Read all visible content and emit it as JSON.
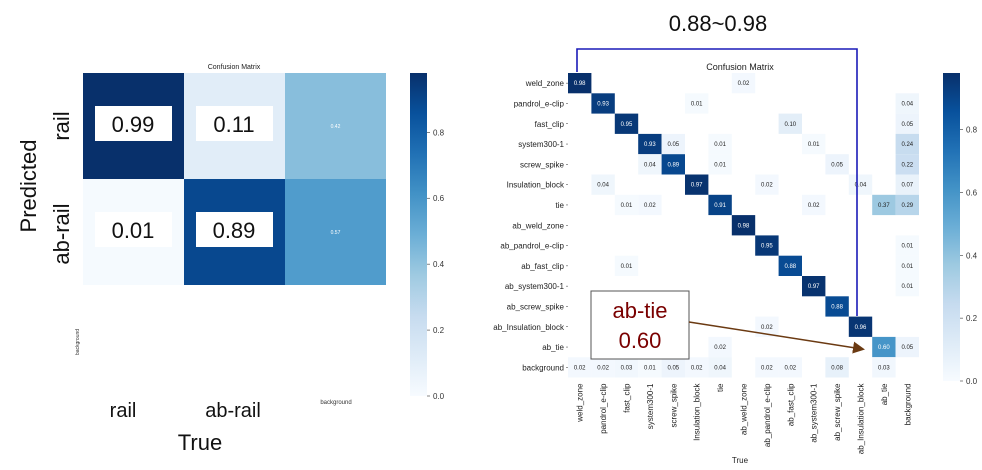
{
  "chart_data": [
    {
      "type": "heatmap",
      "title": "Confusion Matrix",
      "xlabel": "True",
      "ylabel": "Predicted",
      "x_tick_labels": [
        "rail",
        "ab-rail",
        "background"
      ],
      "y_tick_labels": [
        "rail",
        "ab-rail",
        "background"
      ],
      "values": [
        [
          0.99,
          0.11,
          0.42
        ],
        [
          0.01,
          0.89,
          0.57
        ],
        [
          null,
          null,
          null
        ]
      ],
      "colorbar": {
        "min": 0.0,
        "max": 0.98,
        "ticks": [
          "0.0",
          "0.2",
          "0.4",
          "0.6",
          "0.8"
        ]
      },
      "callouts": [
        "0.99",
        "0.11",
        "0.01",
        "0.89"
      ]
    },
    {
      "type": "heatmap",
      "title": "Confusion Matrix",
      "xlabel": "True",
      "ylabel": "",
      "labels": [
        "weld_zone",
        "pandrol_e-clip",
        "fast_clip",
        "system300-1",
        "screw_spike",
        "Insulation_block",
        "tie",
        "ab_weld_zone",
        "ab_pandrol_e-clip",
        "ab_fast_clip",
        "ab_system300-1",
        "ab_screw_spike",
        "ab_Insulation_block",
        "ab_tie",
        "background"
      ],
      "cells": [
        [
          0,
          0,
          0.98
        ],
        [
          0,
          7,
          0.02
        ],
        [
          1,
          1,
          0.93
        ],
        [
          1,
          5,
          0.01
        ],
        [
          1,
          14,
          0.04
        ],
        [
          2,
          2,
          0.95
        ],
        [
          2,
          9,
          0.1
        ],
        [
          2,
          14,
          0.05
        ],
        [
          3,
          3,
          0.93
        ],
        [
          3,
          4,
          0.05
        ],
        [
          3,
          6,
          0.01
        ],
        [
          3,
          10,
          0.01
        ],
        [
          3,
          14,
          0.24
        ],
        [
          4,
          3,
          0.04
        ],
        [
          4,
          4,
          0.89
        ],
        [
          4,
          6,
          0.01
        ],
        [
          4,
          11,
          0.05
        ],
        [
          4,
          14,
          0.22
        ],
        [
          5,
          1,
          0.04
        ],
        [
          5,
          5,
          0.97
        ],
        [
          5,
          8,
          0.02
        ],
        [
          5,
          12,
          0.04
        ],
        [
          5,
          14,
          0.07
        ],
        [
          6,
          2,
          0.01
        ],
        [
          6,
          3,
          0.02
        ],
        [
          6,
          6,
          0.91
        ],
        [
          6,
          10,
          0.02
        ],
        [
          6,
          13,
          0.37
        ],
        [
          6,
          14,
          0.29
        ],
        [
          7,
          7,
          0.98
        ],
        [
          8,
          8,
          0.95
        ],
        [
          8,
          14,
          0.01
        ],
        [
          9,
          2,
          0.01
        ],
        [
          9,
          9,
          0.88
        ],
        [
          9,
          14,
          0.01
        ],
        [
          10,
          10,
          0.97
        ],
        [
          10,
          14,
          0.01
        ],
        [
          11,
          11,
          0.88
        ],
        [
          12,
          8,
          0.02
        ],
        [
          12,
          12,
          0.96
        ],
        [
          13,
          6,
          0.02
        ],
        [
          13,
          13,
          0.6
        ],
        [
          13,
          14,
          0.05
        ],
        [
          14,
          0,
          0.02
        ],
        [
          14,
          1,
          0.02
        ],
        [
          14,
          2,
          0.03
        ],
        [
          14,
          3,
          0.01
        ],
        [
          14,
          4,
          0.05
        ],
        [
          14,
          5,
          0.02
        ],
        [
          14,
          6,
          0.04
        ],
        [
          14,
          8,
          0.02
        ],
        [
          14,
          9,
          0.02
        ],
        [
          14,
          11,
          0.08
        ],
        [
          14,
          13,
          0.03
        ]
      ],
      "colorbar": {
        "min": 0.0,
        "max": 0.98,
        "ticks": [
          "0.0",
          "0.2",
          "0.4",
          "0.6",
          "0.8"
        ]
      },
      "annotation_range": "0.88~0.98",
      "callout_label": "ab-tie",
      "callout_value": "0.60"
    }
  ],
  "colors": {
    "scale": [
      "#f7fbff",
      "#deebf7",
      "#c6dbef",
      "#9ecae1",
      "#6baed6",
      "#4292c6",
      "#2171b5",
      "#08519c",
      "#08306b"
    ],
    "bracket": "#1a1ab8",
    "arrow": "#6b3a12",
    "callout_text": "#7a0000"
  }
}
